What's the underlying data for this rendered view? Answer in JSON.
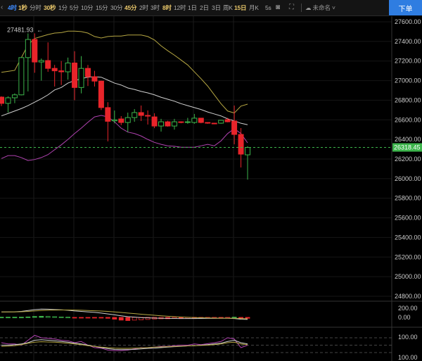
{
  "toolbar": {
    "intervals": [
      {
        "label": "4时",
        "state": "active"
      },
      {
        "label": "1秒",
        "state": "gold"
      },
      {
        "label": "分时",
        "state": ""
      },
      {
        "label": "30秒",
        "state": "gold"
      },
      {
        "label": "1分",
        "state": ""
      },
      {
        "label": "5分",
        "state": ""
      },
      {
        "label": "10分",
        "state": ""
      },
      {
        "label": "15分",
        "state": ""
      },
      {
        "label": "30分",
        "state": ""
      },
      {
        "label": "45分",
        "state": "gold"
      },
      {
        "label": "2时",
        "state": ""
      },
      {
        "label": "3时",
        "state": ""
      },
      {
        "label": "8时",
        "state": "gold"
      },
      {
        "label": "12时",
        "state": ""
      },
      {
        "label": "1日",
        "state": ""
      },
      {
        "label": "2日",
        "state": ""
      },
      {
        "label": "3日",
        "state": ""
      },
      {
        "label": "周K",
        "state": ""
      },
      {
        "label": "15日",
        "state": "gold"
      },
      {
        "label": "月K",
        "state": ""
      },
      {
        "label": "5s",
        "state": ""
      }
    ],
    "icons": [
      "camera-icon",
      "fullscreen-icon",
      "cloud-icon"
    ],
    "layout_name": "未命名",
    "order_button": "下单",
    "active_color": "#3f8cff",
    "order_color": "#2f7de1"
  },
  "price_axis": {
    "ticks": [
      "27600.00",
      "27400.00",
      "27200.00",
      "27000.00",
      "26800.00",
      "26600.00",
      "26400.00",
      "26200.00",
      "26000.00",
      "25800.00",
      "25600.00",
      "25400.00",
      "25200.00",
      "25000.00",
      "24800.00"
    ],
    "current_price": "26318.45",
    "current_price_color": "#3cb44b",
    "high_marker": "27481.93"
  },
  "macd_axis": {
    "ticks": [
      "200.00",
      "0.00"
    ]
  },
  "osc_axis": {
    "ticks": [
      "100.00",
      "100.00"
    ]
  },
  "chart_data": {
    "type": "candlestick",
    "ylim": [
      24800,
      27600
    ],
    "up_color": "#3cb44b",
    "down_color": "#e8242a",
    "candles": [
      [
        26832,
        26840,
        26740,
        26768
      ],
      [
        26768,
        26840,
        26675,
        26825
      ],
      [
        26825,
        26870,
        26770,
        26855
      ],
      [
        26855,
        27240,
        26850,
        27235
      ],
      [
        27235,
        27481.93,
        26890,
        27420
      ],
      [
        27420,
        27481.93,
        27080,
        27190
      ],
      [
        27190,
        27225,
        27000,
        27205
      ],
      [
        27205,
        27390,
        27090,
        27125
      ],
      [
        27125,
        27160,
        26940,
        27100
      ],
      [
        27100,
        27200,
        26955,
        27090
      ],
      [
        27090,
        27235,
        27010,
        27180
      ],
      [
        27180,
        27300,
        26800,
        26930
      ],
      [
        26930,
        27250,
        26870,
        27125
      ],
      [
        27125,
        27160,
        26945,
        27040
      ],
      [
        27040,
        27100,
        26940,
        26995
      ],
      [
        26995,
        27000,
        26700,
        26725
      ],
      [
        26725,
        26780,
        26380,
        26585
      ],
      [
        26590,
        26695,
        26565,
        26600
      ],
      [
        26609,
        26638,
        26545,
        26573
      ],
      [
        26573,
        26674,
        26473,
        26623
      ],
      [
        26623,
        26710,
        26580,
        26674
      ],
      [
        26674,
        26746,
        26588,
        26645
      ],
      [
        26645,
        26696,
        26552,
        26638
      ],
      [
        26630,
        26667,
        26515,
        26537
      ],
      [
        26537,
        26610,
        26480,
        26580
      ],
      [
        26580,
        26590,
        26530,
        26537
      ],
      [
        26537,
        26610,
        26500,
        26580
      ],
      [
        26580,
        26585,
        26565,
        26573
      ],
      [
        26573,
        26620,
        26560,
        26580
      ],
      [
        26573,
        26660,
        26560,
        26617
      ],
      [
        26617,
        26620,
        26565,
        26573
      ],
      [
        26573,
        26575,
        26560,
        26566
      ],
      [
        26566,
        26570,
        26555,
        26559
      ],
      [
        26566,
        26600,
        26560,
        26595
      ],
      [
        26602,
        26620,
        26575,
        26580
      ],
      [
        26588,
        26746,
        26350,
        26451
      ],
      [
        26451,
        26516,
        26114,
        26250
      ],
      [
        26243,
        26330,
        25990,
        26318.45
      ]
    ],
    "bands": {
      "upper": {
        "color": "#b5a642",
        "values": [
          27085,
          27095,
          27105,
          27235,
          27365,
          27430,
          27450,
          27470,
          27485,
          27490,
          27505,
          27505,
          27500,
          27485,
          27450,
          27435,
          27450,
          27455,
          27455,
          27465,
          27465,
          27465,
          27450,
          27415,
          27355,
          27305,
          27260,
          27210,
          27160,
          27090,
          27020,
          26945,
          26855,
          26765,
          26690,
          26670,
          26740,
          26760
        ]
      },
      "middle": {
        "color": "#cfcfcf",
        "values": [
          26640,
          26665,
          26690,
          26715,
          26745,
          26780,
          26815,
          26855,
          26905,
          26930,
          26975,
          27000,
          27020,
          27035,
          27040,
          27035,
          27005,
          26975,
          26955,
          26925,
          26910,
          26890,
          26875,
          26855,
          26830,
          26810,
          26790,
          26765,
          26745,
          26725,
          26705,
          26680,
          26660,
          26640,
          26610,
          26590,
          26565,
          26550
        ]
      },
      "lower": {
        "color": "#b042b0",
        "values": [
          26205,
          26235,
          26235,
          26215,
          26185,
          26195,
          26215,
          26245,
          26295,
          26345,
          26400,
          26460,
          26515,
          26575,
          26630,
          26645,
          26630,
          26580,
          26515,
          26475,
          26460,
          26435,
          26400,
          26370,
          26350,
          26335,
          26330,
          26320,
          26320,
          26320,
          26335,
          26350,
          26335,
          26385,
          26460,
          26510,
          26460,
          26365
        ]
      }
    },
    "macd": {
      "histogram": [
        5,
        5,
        5,
        5,
        10,
        20,
        25,
        20,
        15,
        10,
        5,
        -5,
        -5,
        -10,
        -10,
        -15,
        -20,
        -40,
        -60,
        -70,
        -60,
        -55,
        -45,
        -35,
        -30,
        -30,
        -25,
        -25,
        -20,
        -20,
        -20,
        -15,
        -10,
        -10,
        -5,
        5,
        -20,
        -20
      ],
      "dif": [
        120,
        120,
        122,
        130,
        150,
        170,
        180,
        178,
        172,
        165,
        155,
        140,
        130,
        120,
        110,
        95,
        75,
        55,
        35,
        15,
        5,
        -5,
        -10,
        -15,
        -20,
        -22,
        -24,
        -25,
        -25,
        -25,
        -24,
        -22,
        -22,
        -20,
        -20,
        -25,
        -40,
        -45
      ],
      "dea": [
        118,
        119,
        120,
        123,
        130,
        140,
        150,
        156,
        160,
        162,
        162,
        160,
        156,
        150,
        145,
        138,
        130,
        120,
        108,
        95,
        82,
        70,
        58,
        46,
        35,
        25,
        15,
        8,
        2,
        -3,
        -8,
        -12,
        -15,
        -17,
        -18,
        -20,
        -25,
        -30
      ]
    },
    "oscillator": {
      "levels": [
        80,
        50,
        20
      ],
      "k": [
        60,
        55,
        55,
        50,
        70,
        90,
        80,
        78,
        75,
        70,
        68,
        60,
        65,
        50,
        40,
        38,
        30,
        28,
        28,
        30,
        35,
        40,
        38,
        42,
        45,
        45,
        48,
        50,
        50,
        55,
        52,
        56,
        60,
        65,
        80,
        75,
        40,
        50
      ],
      "d": [
        50,
        50,
        52,
        55,
        60,
        70,
        72,
        70,
        68,
        65,
        62,
        58,
        55,
        50,
        45,
        40,
        36,
        33,
        32,
        32,
        33,
        35,
        37,
        38,
        40,
        42,
        44,
        45,
        47,
        48,
        50,
        52,
        55,
        58,
        65,
        70,
        60,
        55
      ],
      "j": [
        45,
        46,
        48,
        52,
        58,
        62,
        64,
        63,
        62,
        60,
        58,
        55,
        52,
        48,
        45,
        42,
        40,
        38,
        37,
        37,
        38,
        39,
        40,
        42,
        43,
        44,
        45,
        46,
        47,
        48,
        49,
        50,
        52,
        55,
        60,
        62,
        55,
        52
      ]
    }
  }
}
